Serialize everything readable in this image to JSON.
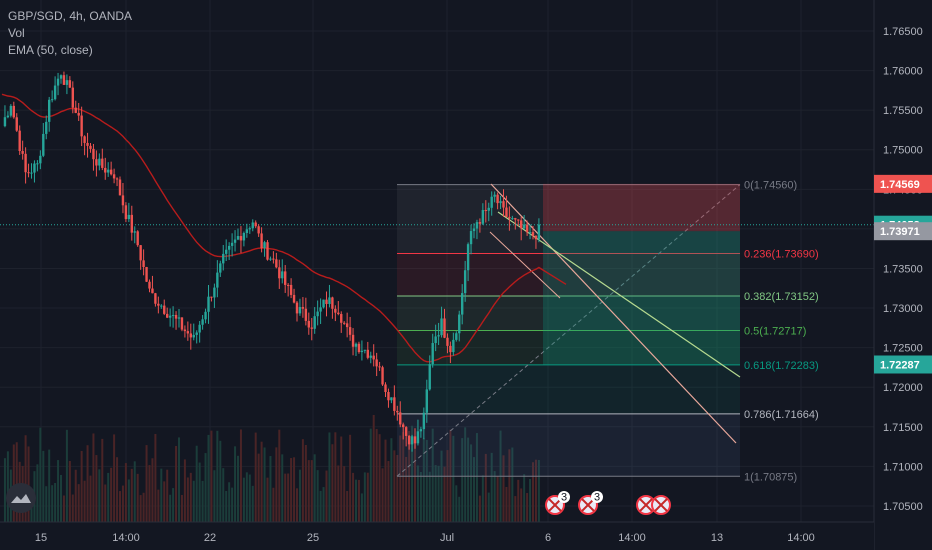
{
  "legend": {
    "symbol": "GBP/SGD, 4h, OANDA",
    "vol": "Vol",
    "ema": "EMA (50, close)"
  },
  "colors": {
    "background": "#131722",
    "grid": "#1e222d",
    "up": "#26a69a",
    "down": "#ef5350",
    "ema": "#b71c1c",
    "axis_text": "#b2b5be"
  },
  "chart_data": {
    "type": "candlestick",
    "symbol": "GBP/SGD",
    "timeframe": "4h",
    "y_axis": {
      "ticks": [
        "1.76500",
        "1.76000",
        "1.75500",
        "1.75000",
        "1.74500",
        "1.74000",
        "1.73500",
        "1.73000",
        "1.72500",
        "1.72000",
        "1.71500",
        "1.71000",
        "1.70500"
      ],
      "range": [
        1.702,
        1.768
      ]
    },
    "x_axis": {
      "ticks": [
        "15",
        "14:00",
        "22",
        "25",
        "Jul",
        "6",
        "14:00",
        "13",
        "14:00"
      ]
    },
    "price_labels": [
      {
        "value": 1.74569,
        "text": "1.74569",
        "color": "#ef5350"
      },
      {
        "value": 1.74053,
        "text": "1.74053",
        "color": "#26a69a"
      },
      {
        "value": 1.73971,
        "text": "1.73971",
        "color": "#9598a1"
      },
      {
        "value": 1.72287,
        "text": "1.72287",
        "color": "#26a69a"
      }
    ],
    "fibonacci": [
      {
        "level": "0",
        "price": 1.7456,
        "text": "0(1.74560)",
        "color": "#787b86"
      },
      {
        "level": "0.236",
        "price": 1.7369,
        "text": "0.236(1.73690)",
        "color": "#f23645"
      },
      {
        "level": "0.382",
        "price": 1.73152,
        "text": "0.382(1.73152)",
        "color": "#81c784"
      },
      {
        "level": "0.5",
        "price": 1.72717,
        "text": "0.5(1.72717)",
        "color": "#4caf50"
      },
      {
        "level": "0.618",
        "price": 1.72283,
        "text": "0.618(1.72283)",
        "color": "#089981"
      },
      {
        "level": "0.786",
        "price": 1.71664,
        "text": "0.786(1.71664)",
        "color": "#b2b5be"
      },
      {
        "level": "1",
        "price": 1.70875,
        "text": "1(1.70875)",
        "color": "#787b86"
      }
    ],
    "position": {
      "entry": 1.73971,
      "stop": 1.74569,
      "target": 1.72287
    },
    "event_badges": [
      "3",
      "3"
    ],
    "current_price": 1.74053
  }
}
